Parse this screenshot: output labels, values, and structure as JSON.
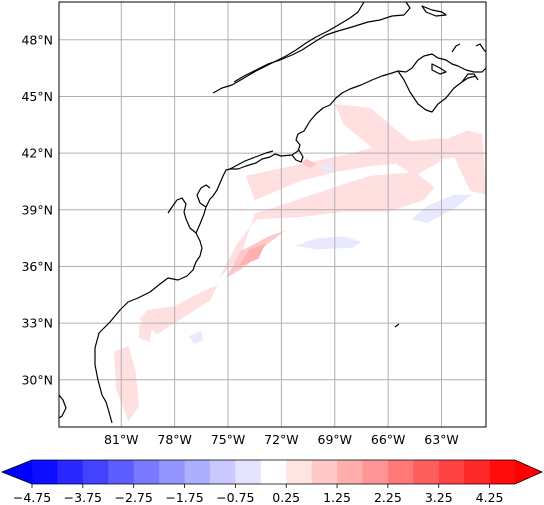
{
  "map": {
    "type": "filled-contour-map",
    "projection": "PlateCarree",
    "extent": {
      "lon": [
        -84.5,
        -60.5
      ],
      "lat": [
        27.5,
        50.0
      ]
    },
    "gridlines": true,
    "lon_ticks": [
      {
        "value": -81,
        "label": "81°W"
      },
      {
        "value": -78,
        "label": "78°W"
      },
      {
        "value": -75,
        "label": "75°W"
      },
      {
        "value": -72,
        "label": "72°W"
      },
      {
        "value": -69,
        "label": "69°W"
      },
      {
        "value": -66,
        "label": "66°W"
      },
      {
        "value": -63,
        "label": "63°W"
      }
    ],
    "lat_ticks": [
      {
        "value": 48,
        "label": "48°N"
      },
      {
        "value": 45,
        "label": "45°N"
      },
      {
        "value": 42,
        "label": "42°N"
      },
      {
        "value": 39,
        "label": "39°N"
      },
      {
        "value": 36,
        "label": "36°N"
      },
      {
        "value": 33,
        "label": "33°N"
      },
      {
        "value": 30,
        "label": "30°N"
      }
    ],
    "colormap": "bwr",
    "coastline_color": "#000000"
  },
  "colorbar": {
    "orientation": "horizontal",
    "extend": "both",
    "vmin": -4.75,
    "vmax": 4.75,
    "step": 0.5,
    "tick_labels": [
      "−4.75",
      "−3.75",
      "−2.75",
      "−1.75",
      "−0.75",
      "0.25",
      "1.25",
      "2.25",
      "3.25",
      "4.25"
    ],
    "tick_values": [
      -4.75,
      -3.75,
      -2.75,
      -1.75,
      -0.75,
      0.25,
      1.25,
      2.25,
      3.25,
      4.25
    ],
    "under_color": "#0000ff",
    "over_color": "#ff0000"
  },
  "chart_data": {
    "type": "heatmap",
    "field_regions": [
      {
        "level": 0.75,
        "color": "#ffe0e0",
        "lonlat": [
          [
            -73.5,
            39.5
          ],
          [
            -71,
            40.5
          ],
          [
            -69,
            41
          ],
          [
            -67,
            41.3
          ],
          [
            -64,
            41.6
          ],
          [
            -62,
            41.8
          ],
          [
            -61,
            42.5
          ],
          [
            -63,
            42.8
          ],
          [
            -66,
            42.5
          ],
          [
            -68,
            42
          ],
          [
            -70,
            41.6
          ],
          [
            -72,
            41.2
          ],
          [
            -74,
            40.8
          ]
        ]
      },
      {
        "level": 0.75,
        "color": "#ffe0e0",
        "lonlat": [
          [
            -75.5,
            35.4
          ],
          [
            -74.5,
            37.2
          ],
          [
            -73.4,
            38.5
          ],
          [
            -71,
            38.6
          ],
          [
            -68.5,
            38.9
          ],
          [
            -66,
            38.9
          ],
          [
            -64,
            39.5
          ],
          [
            -63.4,
            40.2
          ],
          [
            -64.5,
            41
          ],
          [
            -67,
            40.8
          ],
          [
            -69,
            40.2
          ],
          [
            -71.5,
            39.4
          ],
          [
            -73.5,
            38.8
          ],
          [
            -74.3,
            36.5
          ]
        ]
      },
      {
        "level": 0.75,
        "color": "#ffe0e0",
        "lonlat": [
          [
            -69,
            44.6
          ],
          [
            -67,
            44.4
          ],
          [
            -65,
            42.8
          ],
          [
            -63,
            41.6
          ],
          [
            -64.5,
            40.8
          ],
          [
            -66.5,
            42
          ],
          [
            -68.5,
            43.5
          ]
        ]
      },
      {
        "level": 0.75,
        "color": "#ffe0e0",
        "lonlat": [
          [
            -61.5,
            43.2
          ],
          [
            -60.7,
            43.0
          ],
          [
            -60.5,
            39.8
          ],
          [
            -61.4,
            40.0
          ],
          [
            -62.2,
            41.6
          ],
          [
            -62.6,
            42.8
          ]
        ]
      },
      {
        "level": 0.75,
        "color": "#ffe0e0",
        "lonlat": [
          [
            -77.5,
            33.3
          ],
          [
            -76,
            34.2
          ],
          [
            -75.6,
            35.0
          ],
          [
            -76.6,
            34.6
          ],
          [
            -78.0,
            33.9
          ],
          [
            -79.5,
            33.7
          ],
          [
            -80,
            33.2
          ],
          [
            -79,
            32.4
          ]
        ]
      },
      {
        "level": 0.75,
        "color": "#ffe0e0",
        "lonlat": [
          [
            -81.4,
            31.5
          ],
          [
            -80.6,
            31.8
          ],
          [
            -80.2,
            30.5
          ],
          [
            -80,
            28.6
          ],
          [
            -80.6,
            27.8
          ],
          [
            -81.3,
            29.5
          ]
        ]
      },
      {
        "level": 0.75,
        "color": "#ffe0e0",
        "lonlat": [
          [
            -80.0,
            32.9
          ],
          [
            -79.2,
            33.2
          ],
          [
            -79.4,
            32.0
          ],
          [
            -80.0,
            32.2
          ]
        ]
      },
      {
        "level": 1.25,
        "color": "#ffc8c8",
        "lonlat": [
          [
            -75.1,
            35.4
          ],
          [
            -74.3,
            36.8
          ],
          [
            -72.7,
            37.6
          ],
          [
            -71.8,
            37.9
          ],
          [
            -72.9,
            37.1
          ],
          [
            -74.0,
            36.0
          ]
        ]
      },
      {
        "level": 1.25,
        "color": "#ffc8c8",
        "lonlat": [
          [
            -70.6,
            41.7
          ],
          [
            -70.0,
            41.4
          ],
          [
            -70.4,
            41.2
          ],
          [
            -70.9,
            41.5
          ]
        ]
      },
      {
        "level": 1.75,
        "color": "#ffb0b0",
        "lonlat": [
          [
            -74.4,
            36.0
          ],
          [
            -73.8,
            36.9
          ],
          [
            -72.9,
            37.2
          ],
          [
            -73.3,
            36.4
          ]
        ]
      },
      {
        "level": -0.25,
        "color": "#e8e8ff",
        "lonlat": [
          [
            -71.2,
            37.1
          ],
          [
            -70,
            37.5
          ],
          [
            -68.5,
            37.6
          ],
          [
            -67.5,
            37.3
          ],
          [
            -68,
            37.0
          ],
          [
            -70,
            36.9
          ]
        ]
      },
      {
        "level": -0.25,
        "color": "#e8e8ff",
        "lonlat": [
          [
            -64.7,
            38.5
          ],
          [
            -63.8,
            39.2
          ],
          [
            -62.3,
            39.8
          ],
          [
            -61.3,
            39.8
          ],
          [
            -62.2,
            39.1
          ],
          [
            -63.8,
            38.3
          ]
        ]
      },
      {
        "level": -0.25,
        "color": "#e8e8ff",
        "lonlat": [
          [
            -69.8,
            41.3
          ],
          [
            -69.3,
            41.5
          ],
          [
            -69.1,
            41.1
          ],
          [
            -69.5,
            41.0
          ]
        ]
      },
      {
        "level": -0.25,
        "color": "#e8e8ff",
        "lonlat": [
          [
            -77.2,
            32.3
          ],
          [
            -76.5,
            32.6
          ],
          [
            -76.4,
            32.1
          ],
          [
            -76.9,
            31.9
          ]
        ]
      }
    ]
  }
}
